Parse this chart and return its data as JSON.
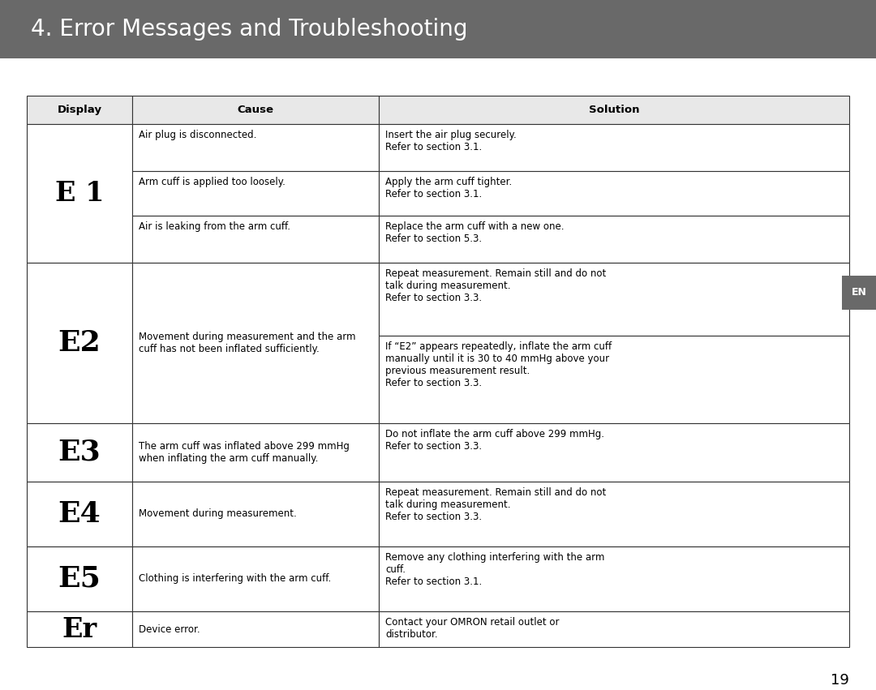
{
  "title": "4. Error Messages and Troubleshooting",
  "title_bg": "#696969",
  "title_color": "#ffffff",
  "title_fontsize": 20,
  "page_number": "19",
  "page_bg": "#ffffff",
  "en_badge_color": "#696969",
  "en_badge_text": "EN",
  "table_header": [
    "Display",
    "Cause",
    "Solution"
  ],
  "rows": [
    {
      "display": "E 1",
      "display_fontsize": 24,
      "sub_rows": [
        {
          "cause": "Air plug is disconnected.",
          "solution": "Insert the air plug securely.\nRefer to section 3.1."
        },
        {
          "cause": "Arm cuff is applied too loosely.",
          "solution": "Apply the arm cuff tighter.\nRefer to section 3.1."
        },
        {
          "cause": "Air is leaking from the arm cuff.",
          "solution": "Replace the arm cuff with a new one.\nRefer to section 5.3."
        }
      ]
    },
    {
      "display": "E2",
      "display_fontsize": 26,
      "cause": "Movement during measurement and the arm\ncuff has not been inflated sufficiently.",
      "sub_solutions": [
        "Repeat measurement. Remain still and do not\ntalk during measurement.\nRefer to section 3.3.",
        "If “E2” appears repeatedly, inflate the arm cuff\nmanually until it is 30 to 40 mmHg above your\nprevious measurement result.\nRefer to section 3.3."
      ]
    },
    {
      "display": "E3",
      "display_fontsize": 26,
      "cause": "The arm cuff was inflated above 299 mmHg\nwhen inflating the arm cuff manually.",
      "solution": "Do not inflate the arm cuff above 299 mmHg.\nRefer to section 3.3."
    },
    {
      "display": "E4",
      "display_fontsize": 26,
      "cause": "Movement during measurement.",
      "solution": "Repeat measurement. Remain still and do not\ntalk during measurement.\nRefer to section 3.3."
    },
    {
      "display": "E5",
      "display_fontsize": 26,
      "cause": "Clothing is interfering with the arm cuff.",
      "solution": "Remove any clothing interfering with the arm\ncuff.\nRefer to section 3.1."
    },
    {
      "display": "Er",
      "display_fontsize": 24,
      "cause": "Device error.",
      "solution": "Contact your OMRON retail outlet or\ndistributor."
    }
  ]
}
